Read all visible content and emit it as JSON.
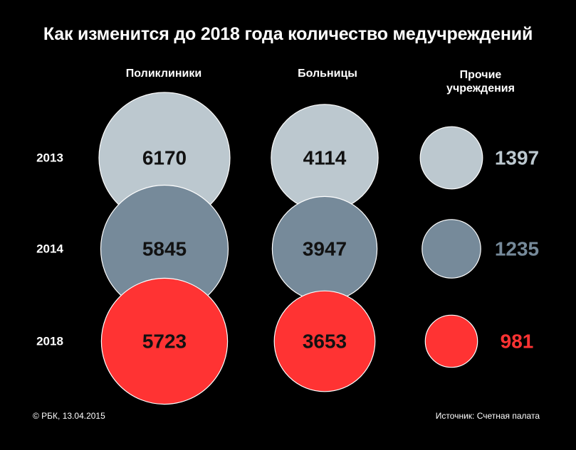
{
  "title": "Как изменится до 2018 года количество медучреждений",
  "footer": {
    "copyright": "© РБК, 13.04.2015",
    "source": "Источник: Счетная палата"
  },
  "colors": {
    "background": "#000000",
    "year_2013": "#bcc8cf",
    "year_2014": "#768a9a",
    "year_2018": "#ff3333",
    "outline": "#ffffff",
    "value_text_dark": "#111111"
  },
  "chart_data": {
    "type": "bubble",
    "title": "Как изменится до 2018 года количество медучреждений",
    "categories": [
      "Поликлиники",
      "Больницы",
      "Прочие учреждения"
    ],
    "category_lines": [
      [
        "Поликлиники"
      ],
      [
        "Больницы"
      ],
      [
        "Прочие",
        "учреждения"
      ]
    ],
    "years": [
      "2013",
      "2014",
      "2018"
    ],
    "series": [
      {
        "name": "2013",
        "values": [
          6170,
          4114,
          1397
        ]
      },
      {
        "name": "2014",
        "values": [
          5845,
          3947,
          1235
        ]
      },
      {
        "name": "2018",
        "values": [
          5723,
          3653,
          981
        ]
      }
    ]
  }
}
